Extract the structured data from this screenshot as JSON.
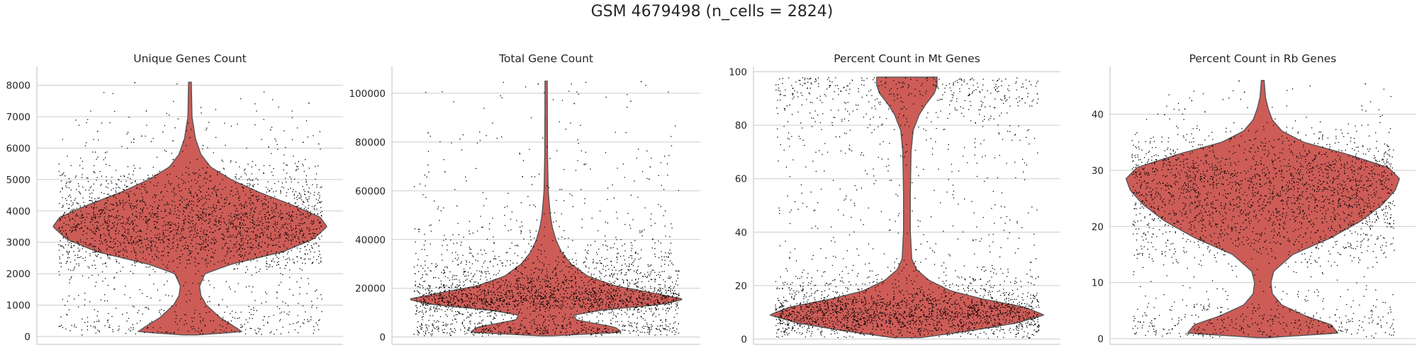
{
  "figure": {
    "title": "GSM 4679498 (n_cells = 2824)"
  },
  "style": {
    "violin_fill": "#cd5c57",
    "violin_edge": "#555555",
    "grid": "#cccccc",
    "point": "#000000"
  },
  "chart_data": [
    {
      "type": "violin",
      "title": "Unique Genes Count",
      "ylim": [
        -250,
        8600
      ],
      "yticks": [
        0,
        1000,
        2000,
        3000,
        4000,
        5000,
        6000,
        7000,
        8000
      ],
      "ytick_labels": [
        "0",
        "1000",
        "2000",
        "3000",
        "4000",
        "5000",
        "6000",
        "7000",
        "8000"
      ],
      "grid": true,
      "y_min": 50,
      "y_max": 8100,
      "density": [
        [
          50,
          0.05
        ],
        [
          150,
          0.38
        ],
        [
          300,
          0.33
        ],
        [
          600,
          0.22
        ],
        [
          1000,
          0.12
        ],
        [
          1300,
          0.08
        ],
        [
          1600,
          0.07
        ],
        [
          2000,
          0.11
        ],
        [
          2300,
          0.3
        ],
        [
          2700,
          0.68
        ],
        [
          3100,
          0.9
        ],
        [
          3500,
          1.0
        ],
        [
          3800,
          0.95
        ],
        [
          4200,
          0.74
        ],
        [
          4600,
          0.5
        ],
        [
          5000,
          0.3
        ],
        [
          5400,
          0.15
        ],
        [
          5800,
          0.08
        ],
        [
          6300,
          0.04
        ],
        [
          7000,
          0.015
        ],
        [
          8100,
          0.01
        ]
      ],
      "outliers": [
        8100,
        7450,
        7200,
        6650,
        6600,
        6550,
        6400,
        6350,
        6300,
        6250,
        6200,
        6150,
        6100,
        6050
      ]
    },
    {
      "type": "violin",
      "title": "Total Gene Count",
      "ylim": [
        -3000,
        111000
      ],
      "yticks": [
        0,
        20000,
        40000,
        60000,
        80000,
        100000
      ],
      "ytick_labels": [
        "0",
        "20000",
        "40000",
        "60000",
        "80000",
        "100000"
      ],
      "grid": true,
      "y_min": 500,
      "y_max": 105000,
      "density": [
        [
          500,
          0.05
        ],
        [
          2000,
          0.55
        ],
        [
          4000,
          0.5
        ],
        [
          7000,
          0.22
        ],
        [
          9000,
          0.2
        ],
        [
          11000,
          0.4
        ],
        [
          13500,
          0.85
        ],
        [
          15500,
          1.0
        ],
        [
          18000,
          0.78
        ],
        [
          21000,
          0.5
        ],
        [
          25000,
          0.3
        ],
        [
          30000,
          0.18
        ],
        [
          35000,
          0.11
        ],
        [
          40000,
          0.07
        ],
        [
          45000,
          0.045
        ],
        [
          50000,
          0.03
        ],
        [
          60000,
          0.015
        ],
        [
          75000,
          0.01
        ],
        [
          105000,
          0.008
        ]
      ],
      "outliers": [
        105000,
        104000,
        97000,
        96000,
        84000,
        71000,
        70000,
        68000,
        66000,
        65000
      ]
    },
    {
      "type": "violin",
      "title": "Percent Count in Mt Genes",
      "ylim": [
        -2,
        102
      ],
      "yticks": [
        0,
        20,
        40,
        60,
        80,
        100
      ],
      "ytick_labels": [
        "0",
        "20",
        "40",
        "60",
        "80",
        "100"
      ],
      "grid": true,
      "y_min": 0.5,
      "y_max": 98,
      "density": [
        [
          0.5,
          0.1
        ],
        [
          3,
          0.45
        ],
        [
          6,
          0.8
        ],
        [
          9,
          1.0
        ],
        [
          12,
          0.85
        ],
        [
          15,
          0.55
        ],
        [
          18,
          0.32
        ],
        [
          22,
          0.16
        ],
        [
          26,
          0.07
        ],
        [
          30,
          0.035
        ],
        [
          40,
          0.025
        ],
        [
          55,
          0.025
        ],
        [
          70,
          0.03
        ],
        [
          78,
          0.045
        ],
        [
          84,
          0.09
        ],
        [
          88,
          0.14
        ],
        [
          92,
          0.2
        ],
        [
          95,
          0.22
        ],
        [
          98,
          0.22
        ]
      ],
      "outliers": []
    },
    {
      "type": "violin",
      "title": "Percent Count in Rb Genes",
      "ylim": [
        -1,
        48.5
      ],
      "yticks": [
        0,
        10,
        20,
        30,
        40
      ],
      "ytick_labels": [
        "0",
        "10",
        "20",
        "30",
        "40"
      ],
      "grid": true,
      "y_min": 0.2,
      "y_max": 46,
      "density": [
        [
          0.2,
          0.04
        ],
        [
          1,
          0.55
        ],
        [
          2.5,
          0.5
        ],
        [
          4,
          0.32
        ],
        [
          6,
          0.14
        ],
        [
          8,
          0.07
        ],
        [
          10,
          0.06
        ],
        [
          12,
          0.08
        ],
        [
          15,
          0.22
        ],
        [
          18,
          0.5
        ],
        [
          21,
          0.72
        ],
        [
          24,
          0.88
        ],
        [
          26.5,
          0.97
        ],
        [
          28.5,
          1.0
        ],
        [
          30.5,
          0.92
        ],
        [
          33,
          0.6
        ],
        [
          35,
          0.3
        ],
        [
          37,
          0.14
        ],
        [
          39,
          0.07
        ],
        [
          41,
          0.04
        ],
        [
          43,
          0.02
        ],
        [
          46,
          0.01
        ]
      ],
      "outliers": [
        46,
        45.5,
        44,
        42.5,
        41,
        40.5,
        40
      ]
    }
  ]
}
